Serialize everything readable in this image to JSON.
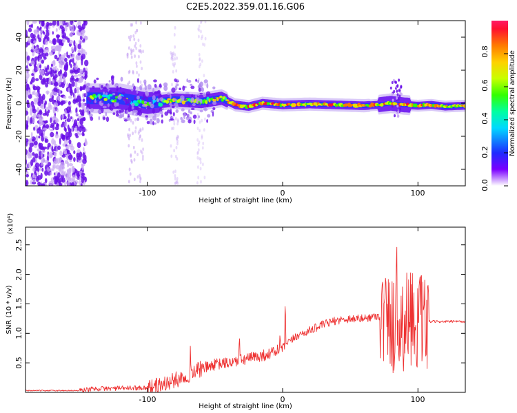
{
  "title": "C2E5.2022.359.01.16.G06",
  "chart_data": [
    {
      "type": "heatmap",
      "xlabel": "Height of straight line (km)",
      "ylabel": "Frequency (Hz)",
      "xlim": [
        -190,
        135
      ],
      "ylim": [
        -50,
        50
      ],
      "xticks": [
        -100,
        0,
        100
      ],
      "yticks": [
        -40,
        -20,
        0,
        20,
        40
      ],
      "colorbar": {
        "label": "Normalized spectral amplitude",
        "range": [
          0.0,
          1.0
        ],
        "ticks": [
          "0.0",
          "0.2",
          "0.4",
          "0.6",
          "0.8"
        ]
      },
      "ridge": {
        "x": [
          -140,
          -120,
          -100,
          -80,
          -60,
          -45,
          -35,
          -25,
          -15,
          0,
          20,
          40,
          60,
          70,
          80,
          90,
          100,
          110,
          120,
          135
        ],
        "y": [
          3,
          3,
          0,
          2,
          1,
          3,
          -1,
          -2,
          0,
          -1,
          -0.5,
          -1,
          -1.5,
          -1,
          0,
          -1,
          -1.5,
          -1,
          -2,
          -1.5
        ]
      }
    },
    {
      "type": "line",
      "xlabel": "Height of straight line (km)",
      "ylabel": "SNR (10 * v/v)",
      "scale_label": "(x10⁴)",
      "xlim": [
        -190,
        135
      ],
      "ylim": [
        0,
        2.8
      ],
      "xticks": [
        -100,
        0,
        100
      ],
      "yticks": [
        "0.5",
        "1.0",
        "1.5",
        "2.0",
        "2.5"
      ],
      "series": [
        {
          "color": "#ee3333",
          "x": [
            -190,
            -150,
            -140,
            -120,
            -100,
            -90,
            -80,
            -70,
            -60,
            -50,
            -40,
            -30,
            -20,
            -10,
            0,
            10,
            20,
            30,
            40,
            50,
            60,
            70,
            75,
            80,
            85,
            90,
            95,
            100,
            105,
            108,
            110,
            120,
            135
          ],
          "y": [
            0.03,
            0.03,
            0.06,
            0.07,
            0.08,
            0.12,
            0.2,
            0.3,
            0.4,
            0.47,
            0.5,
            0.55,
            0.6,
            0.65,
            0.75,
            0.95,
            1.05,
            1.15,
            1.22,
            1.25,
            1.25,
            1.3,
            1.25,
            1.2,
            1.0,
            1.2,
            1.3,
            1.2,
            1.1,
            1.2,
            1.2,
            1.2,
            1.2
          ]
        }
      ]
    }
  ]
}
